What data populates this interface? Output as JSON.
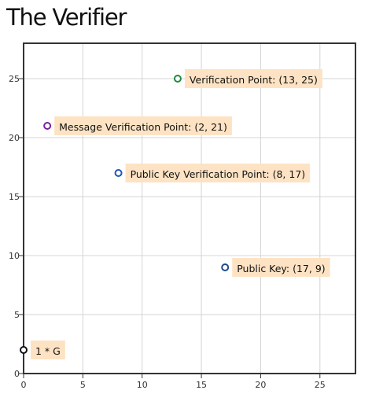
{
  "title": "The Verifier",
  "chart_data": {
    "type": "scatter",
    "xlim": [
      0,
      28
    ],
    "ylim": [
      0,
      28
    ],
    "xticks": [
      0,
      5,
      10,
      15,
      20,
      25
    ],
    "yticks": [
      0,
      5,
      10,
      15,
      20,
      25
    ],
    "grid": true,
    "points": [
      {
        "x": 0,
        "y": 2,
        "label": "1 * G",
        "color": "#111111"
      },
      {
        "x": 2,
        "y": 21,
        "label": "Message Verification Point: (2, 21)",
        "color": "#7b1fa2"
      },
      {
        "x": 8,
        "y": 17,
        "label": "Public Key Verification Point: (8, 17)",
        "color": "#1e56b8"
      },
      {
        "x": 13,
        "y": 25,
        "label": "Verification Point: (13, 25)",
        "color": "#1f8a3c"
      },
      {
        "x": 17,
        "y": 9,
        "label": "Public Key: (17, 9)",
        "color": "#1e4a8c"
      }
    ],
    "label_background": "#fde3c4"
  }
}
